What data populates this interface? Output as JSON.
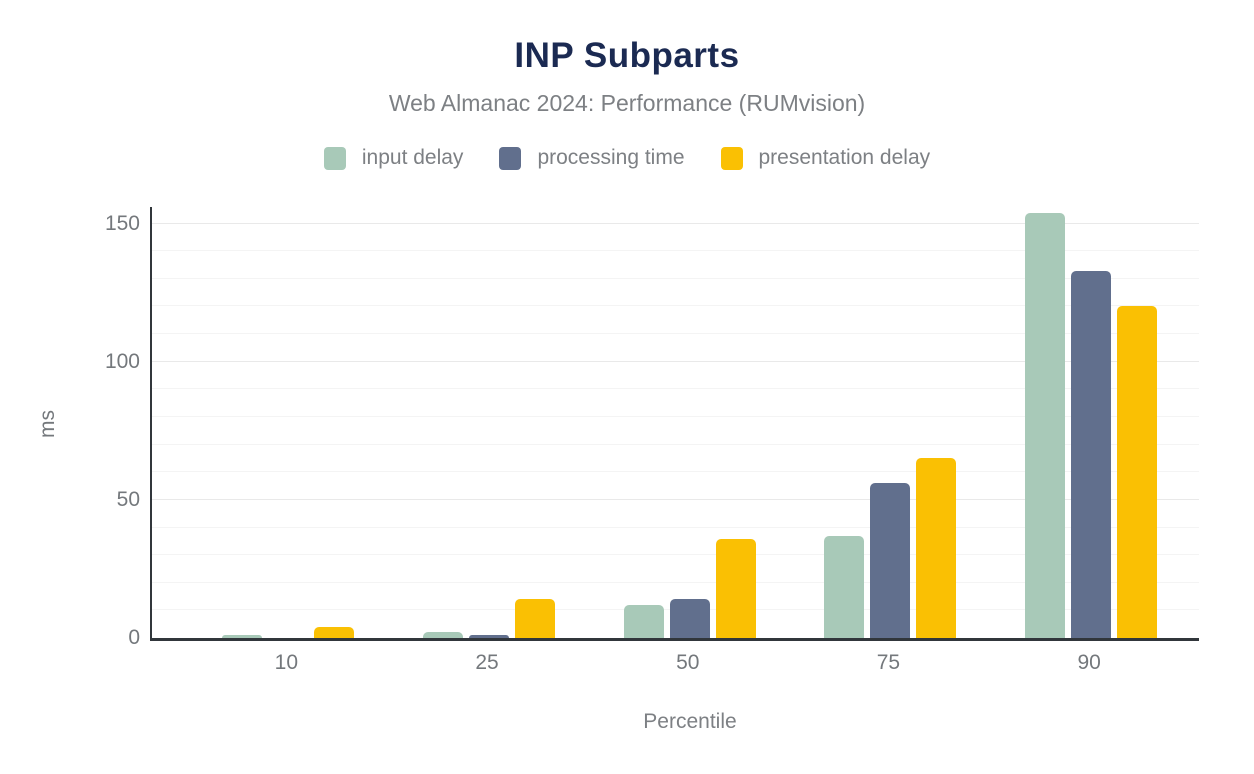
{
  "title": "INP Subparts",
  "subtitle": "Web Almanac 2024: Performance (RUMvision)",
  "colors": {
    "background": "#ffffff",
    "title_text": "#1b2a52",
    "muted_text": "#7d8084",
    "tick_text": "#74787c",
    "axis_line": "#31363b",
    "grid_major": "#e9e9e9",
    "grid_minor": "#f4f4f4",
    "input_delay": "#a8c9b8",
    "processing_time": "#616f8d",
    "presentation_delay": "#fac003"
  },
  "legend": {
    "items": [
      {
        "label": "input delay",
        "color": "#a8c9b8"
      },
      {
        "label": "processing time",
        "color": "#616f8d"
      },
      {
        "label": "presentation delay",
        "color": "#fac003"
      }
    ],
    "position": "top"
  },
  "chart_data": {
    "type": "bar",
    "title": "INP Subparts",
    "subtitle": "Web Almanac 2024: Performance (RUMvision)",
    "categories": [
      "10",
      "25",
      "50",
      "75",
      "90"
    ],
    "series": [
      {
        "name": "input delay",
        "color": "#a8c9b8",
        "values": [
          1,
          2,
          12,
          37,
          154
        ]
      },
      {
        "name": "processing time",
        "color": "#616f8d",
        "values": [
          0,
          1,
          14,
          56,
          133
        ]
      },
      {
        "name": "presentation delay",
        "color": "#fac003",
        "values": [
          4,
          14,
          36,
          65,
          120
        ]
      }
    ],
    "xlabel": "Percentile",
    "ylabel": "ms",
    "ylim": [
      0,
      156
    ],
    "yticks": [
      0,
      50,
      100,
      150
    ],
    "minor_grid_interval": 10,
    "grid": "horizontal",
    "legend_position": "top"
  }
}
